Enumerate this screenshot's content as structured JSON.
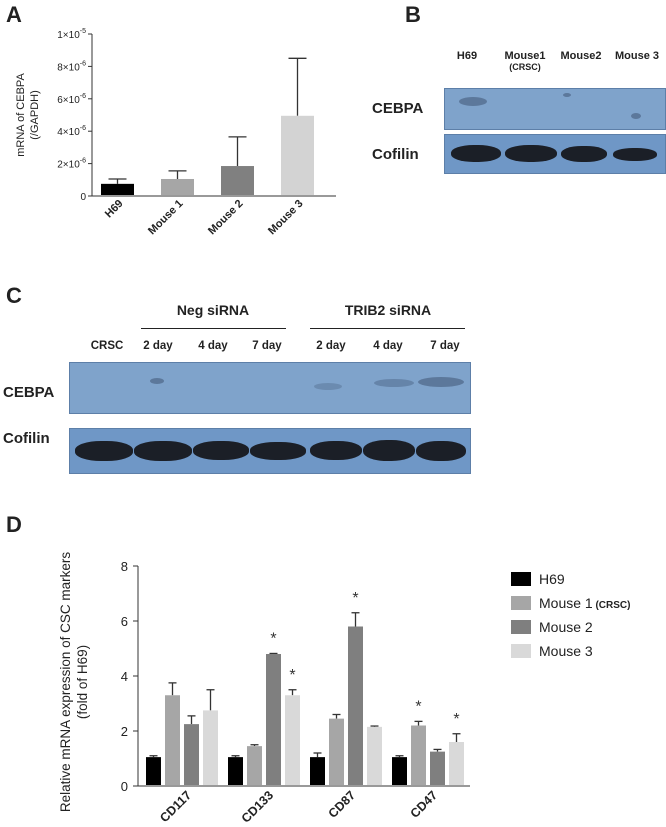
{
  "panels": {
    "a": "A",
    "b": "B",
    "c": "C",
    "d": "D"
  },
  "chart_data": [
    {
      "type": "bar",
      "panel": "A",
      "title": "",
      "ylabel_line1": "mRNA of CEBPA",
      "ylabel_line2": "(/GAPDH)",
      "xlabel": "",
      "categories": [
        "H69",
        "Mouse 1",
        "Mouse 2",
        "Mouse 3"
      ],
      "values": [
        7.5e-07,
        1.05e-06,
        1.85e-06,
        4.95e-06
      ],
      "errors": [
        3e-07,
        5e-07,
        1.8e-06,
        3.55e-06
      ],
      "colors": [
        "#000000",
        "#a6a6a6",
        "#808080",
        "#d3d3d3"
      ],
      "ylim": [
        0,
        1e-05
      ],
      "yticks": [
        {
          "value": 0,
          "mantissa": "0",
          "exp": ""
        },
        {
          "value": 2e-06,
          "mantissa": "2×10",
          "exp": "-6"
        },
        {
          "value": 4e-06,
          "mantissa": "4×10",
          "exp": "-6"
        },
        {
          "value": 6e-06,
          "mantissa": "6×10",
          "exp": "-6"
        },
        {
          "value": 8e-06,
          "mantissa": "8×10",
          "exp": "-6"
        },
        {
          "value": 1e-05,
          "mantissa": "1×10",
          "exp": "-5"
        }
      ],
      "grid": false
    },
    {
      "type": "bar",
      "panel": "D",
      "title": "",
      "ylabel_line1": "Relative mRNA expression of CSC markers",
      "ylabel_line2": "(fold of H69)",
      "xlabel": "",
      "categories": [
        "CD117",
        "CD133",
        "CD87",
        "CD47"
      ],
      "series": [
        {
          "name": "H69",
          "color": "#000000",
          "values": [
            1.05,
            1.05,
            1.05,
            1.05
          ],
          "errors": [
            0.05,
            0.05,
            0.15,
            0.05
          ]
        },
        {
          "name": "Mouse 1",
          "name_suffix": "(CRSC)",
          "color": "#a6a6a6",
          "values": [
            3.3,
            1.45,
            2.45,
            2.2
          ],
          "errors": [
            0.45,
            0.05,
            0.15,
            0.15
          ]
        },
        {
          "name": "Mouse 2",
          "color": "#7f7f7f",
          "values": [
            2.25,
            4.8,
            5.8,
            1.25
          ],
          "errors": [
            0.3,
            0.02,
            0.5,
            0.08
          ]
        },
        {
          "name": "Mouse 3",
          "color": "#d9d9d9",
          "values": [
            2.75,
            3.3,
            2.15,
            1.6
          ],
          "errors": [
            0.75,
            0.2,
            0.03,
            0.3
          ]
        }
      ],
      "significance": [
        {
          "category": "CD133",
          "series": 2,
          "label": "*"
        },
        {
          "category": "CD133",
          "series": 3,
          "label": "*"
        },
        {
          "category": "CD87",
          "series": 2,
          "label": "*"
        },
        {
          "category": "CD47",
          "series": 1,
          "label": "*"
        },
        {
          "category": "CD47",
          "series": 3,
          "label": "*"
        }
      ],
      "ylim": [
        0,
        8
      ],
      "yticks": [
        0,
        2,
        4,
        6,
        8
      ],
      "legend_position": "right",
      "grid": false
    }
  ],
  "blot_b": {
    "lanes": [
      {
        "label": "H69",
        "sub": ""
      },
      {
        "label": "Mouse1",
        "sub": "(CRSC)"
      },
      {
        "label": "Mouse2",
        "sub": ""
      },
      {
        "label": "Mouse 3",
        "sub": ""
      }
    ],
    "rows": [
      "CEBPA",
      "Cofilin"
    ]
  },
  "blot_c": {
    "groups": [
      "Neg siRNA",
      "TRIB2 siRNA"
    ],
    "lanes": [
      "CRSC",
      "2 day",
      "4 day",
      "7 day",
      "2 day",
      "4 day",
      "7 day"
    ],
    "rows": [
      "CEBPA",
      "Cofilin"
    ]
  }
}
